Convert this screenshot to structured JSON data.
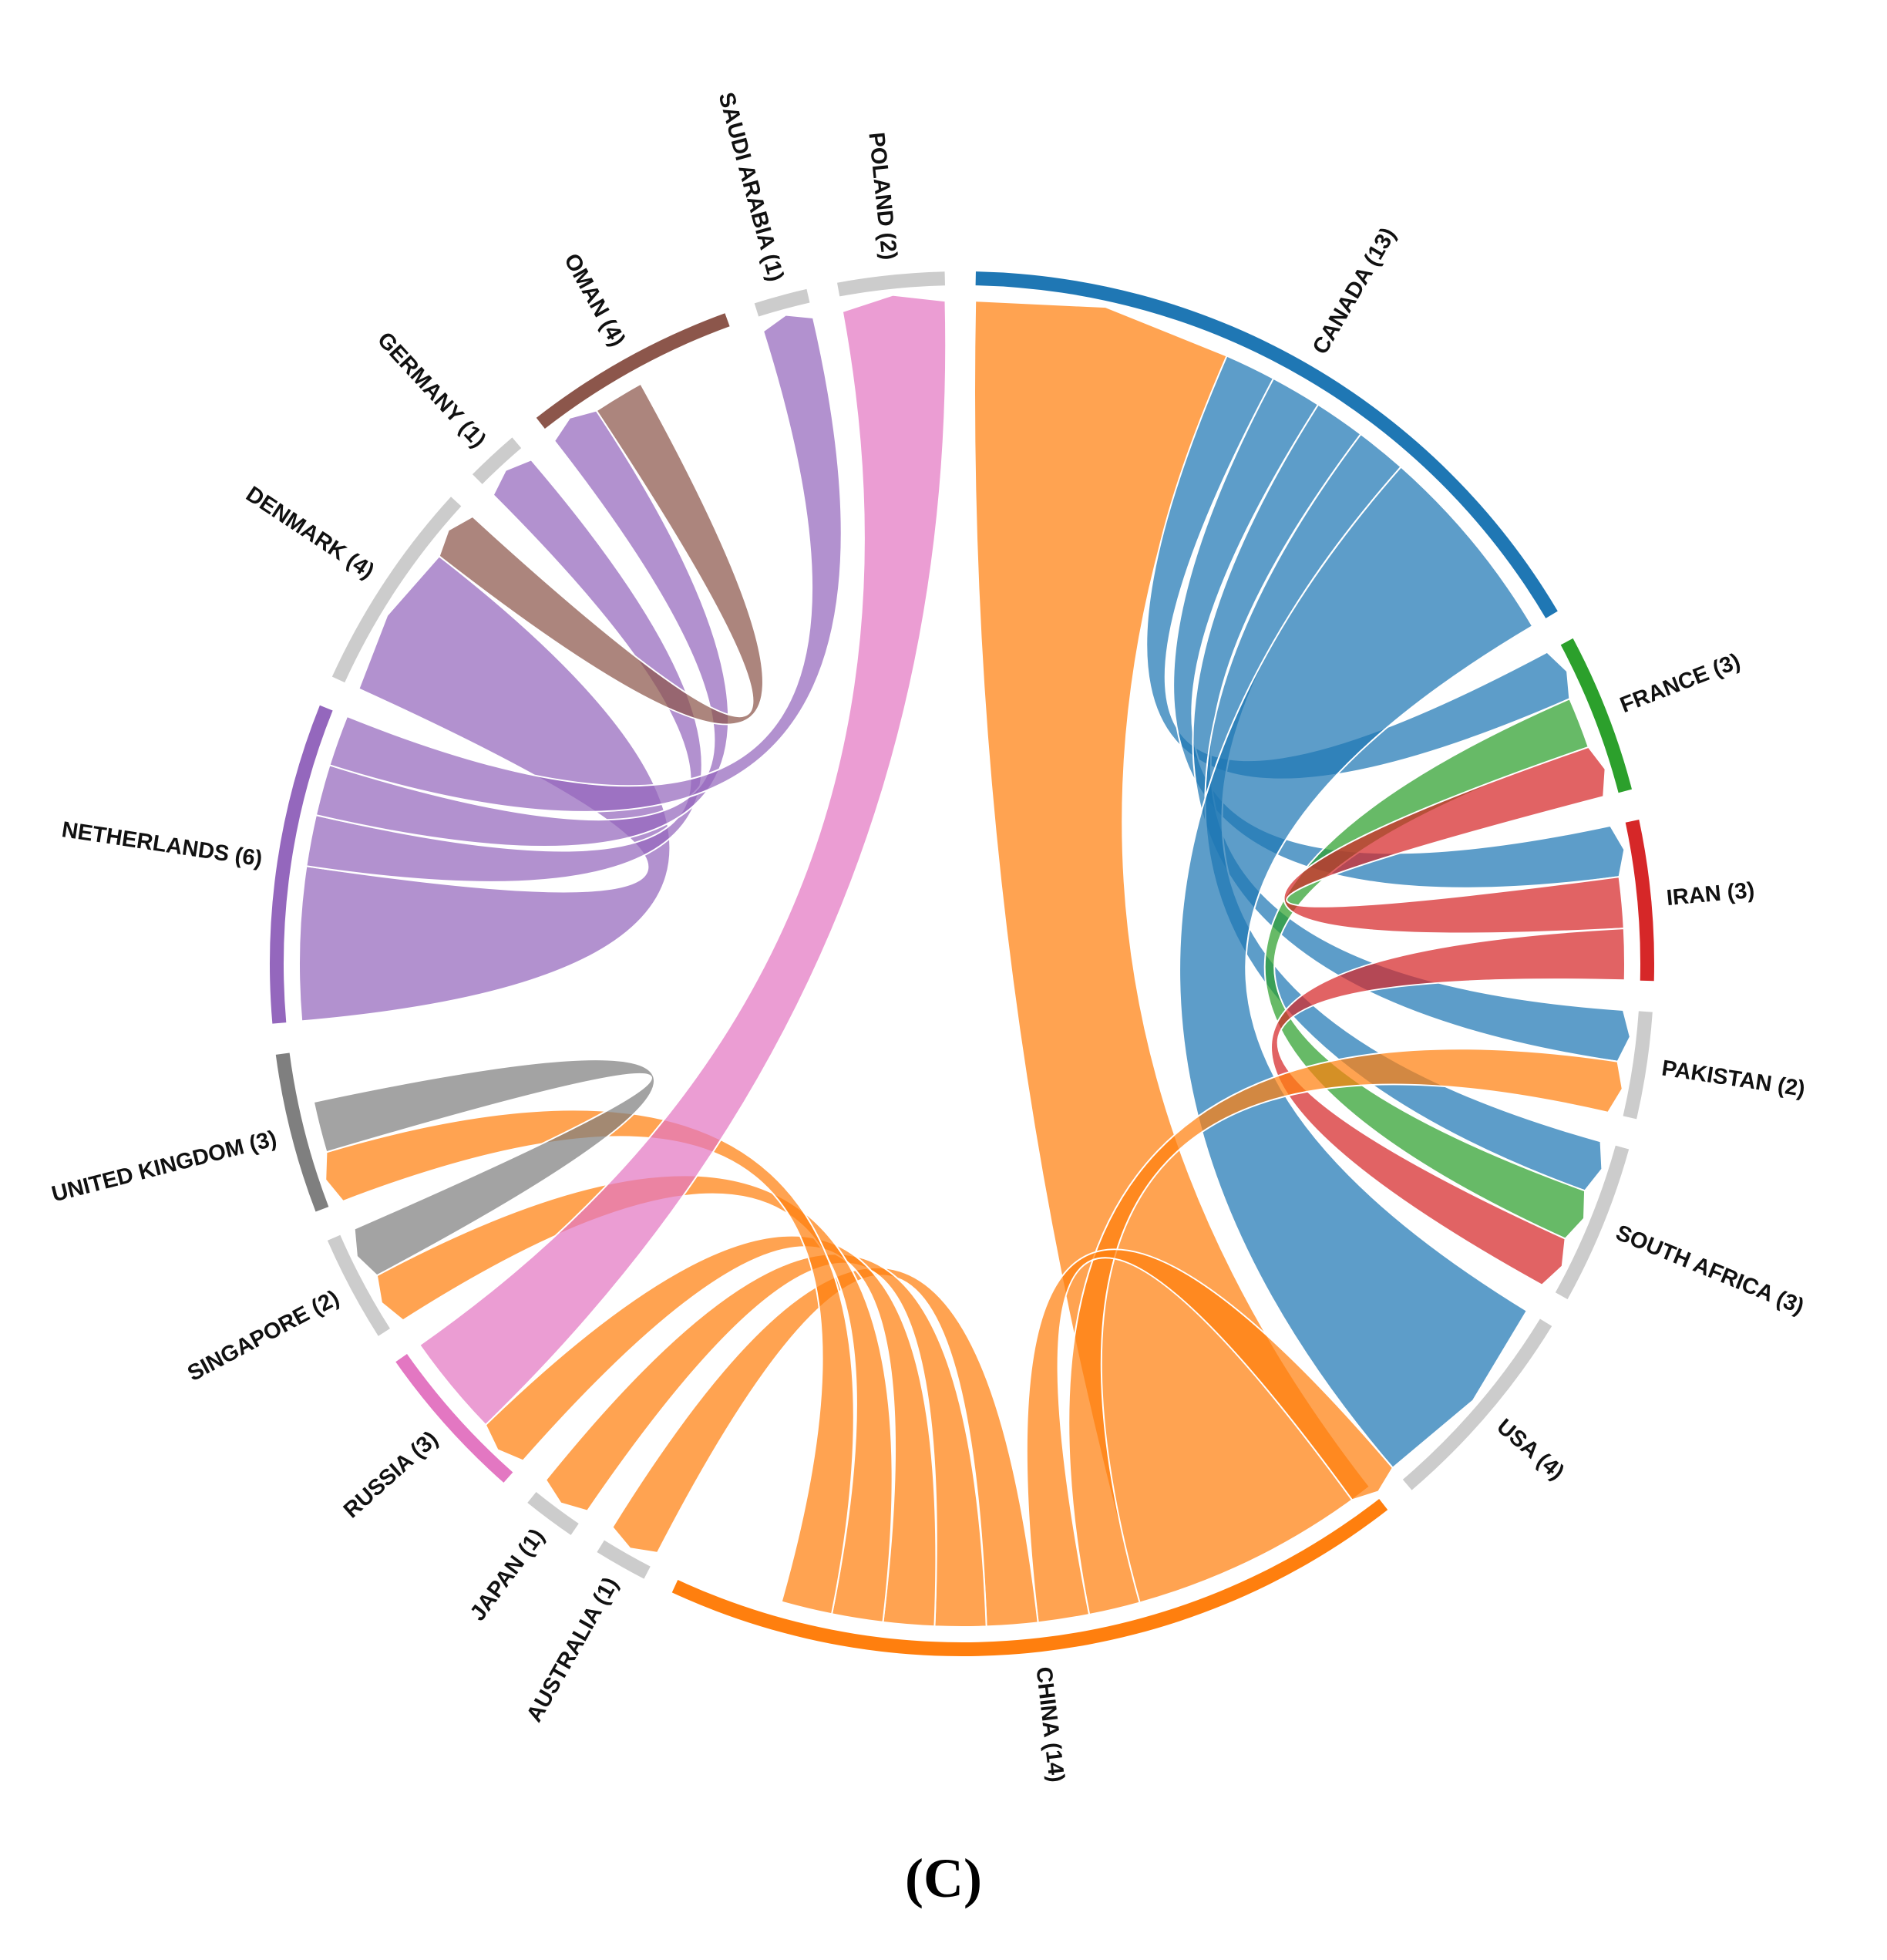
{
  "panel_label": "(C)",
  "chart_data": {
    "type": "chord",
    "nodes": [
      {
        "name": "CANADA",
        "value": 13,
        "label": "CANADA (13)",
        "color": "#1f77b4"
      },
      {
        "name": "FRANCE",
        "value": 3,
        "label": "FRANCE (3)",
        "color": "#2ca02c"
      },
      {
        "name": "IRAN",
        "value": 3,
        "label": "IRAN (3)",
        "color": "#d62728"
      },
      {
        "name": "PAKISTAN",
        "value": 2,
        "label": "PAKISTAN (2)",
        "color": "#cccccc"
      },
      {
        "name": "SOUTH AFRICA",
        "value": 3,
        "label": "SOUTH AFRICA (3)",
        "color": "#cccccc"
      },
      {
        "name": "USA",
        "value": 4,
        "label": "USA (4)",
        "color": "#cccccc"
      },
      {
        "name": "CHINA",
        "value": 14,
        "label": "CHINA (14)",
        "color": "#ff7f0e"
      },
      {
        "name": "AUSTRALIA",
        "value": 1,
        "label": "AUSTRALIA (1)",
        "color": "#cccccc"
      },
      {
        "name": "JAPAN",
        "value": 1,
        "label": "JAPAN (1)",
        "color": "#cccccc"
      },
      {
        "name": "RUSSIA",
        "value": 3,
        "label": "RUSSIA (3)",
        "color": "#e377c2"
      },
      {
        "name": "SINGAPORE",
        "value": 2,
        "label": "SINGAPORE (2)",
        "color": "#cccccc"
      },
      {
        "name": "UNITED KINGDOM",
        "value": 3,
        "label": "UNITED KINGDOM (3)",
        "color": "#7f7f7f"
      },
      {
        "name": "NETHERLANDS",
        "value": 6,
        "label": "NETHERLANDS (6)",
        "color": "#9467bd"
      },
      {
        "name": "DENMARK",
        "value": 4,
        "label": "DENMARK (4)",
        "color": "#cccccc"
      },
      {
        "name": "GERMANY",
        "value": 1,
        "label": "GERMANY (1)",
        "color": "#cccccc"
      },
      {
        "name": "OMAN",
        "value": 4,
        "label": "OMAN (4)",
        "color": "#8c564b"
      },
      {
        "name": "SAUDI ARABIA",
        "value": 1,
        "label": "SAUDI ARABIA (1)",
        "color": "#cccccc"
      },
      {
        "name": "POLAND",
        "value": 2,
        "label": "POLAND (2)",
        "color": "#cccccc"
      }
    ],
    "links": [
      {
        "source": "CHINA",
        "target": "CANADA",
        "value": 5
      },
      {
        "source": "CANADA",
        "target": "FRANCE",
        "value": 1
      },
      {
        "source": "CANADA",
        "target": "IRAN",
        "value": 1
      },
      {
        "source": "CANADA",
        "target": "PAKISTAN",
        "value": 1
      },
      {
        "source": "CANADA",
        "target": "SOUTH AFRICA",
        "value": 1
      },
      {
        "source": "CANADA",
        "target": "USA",
        "value": 4
      },
      {
        "source": "FRANCE",
        "target": "SOUTH AFRICA",
        "value": 1
      },
      {
        "source": "IRAN",
        "target": "FRANCE",
        "value": 1
      },
      {
        "source": "IRAN",
        "target": "SOUTH AFRICA",
        "value": 1
      },
      {
        "source": "CHINA",
        "target": "PAKISTAN",
        "value": 1
      },
      {
        "source": "CHINA",
        "target": "USA",
        "value": 1
      },
      {
        "source": "CHINA",
        "target": "AUSTRALIA",
        "value": 1
      },
      {
        "source": "CHINA",
        "target": "JAPAN",
        "value": 1
      },
      {
        "source": "CHINA",
        "target": "RUSSIA",
        "value": 1
      },
      {
        "source": "CHINA",
        "target": "SINGAPORE",
        "value": 1
      },
      {
        "source": "CHINA",
        "target": "UNITED KINGDOM",
        "value": 1
      },
      {
        "source": "RUSSIA",
        "target": "POLAND",
        "value": 2
      },
      {
        "source": "UNITED KINGDOM",
        "target": "SINGAPORE",
        "value": 1
      },
      {
        "source": "NETHERLANDS",
        "target": "DENMARK",
        "value": 3
      },
      {
        "source": "NETHERLANDS",
        "target": "GERMANY",
        "value": 1
      },
      {
        "source": "NETHERLANDS",
        "target": "OMAN",
        "value": 1
      },
      {
        "source": "NETHERLANDS",
        "target": "SAUDI ARABIA",
        "value": 1
      },
      {
        "source": "OMAN",
        "target": "DENMARK",
        "value": 1
      }
    ]
  }
}
